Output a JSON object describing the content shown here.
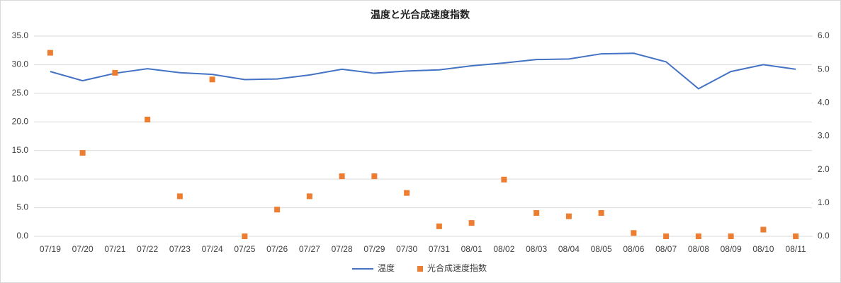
{
  "chart_data": {
    "type": "combo",
    "title": "温度と光合成速度指数",
    "categories": [
      "07/19",
      "07/20",
      "07/21",
      "07/22",
      "07/23",
      "07/24",
      "07/25",
      "07/26",
      "07/27",
      "07/28",
      "07/29",
      "07/30",
      "07/31",
      "08/01",
      "08/02",
      "08/03",
      "08/04",
      "08/05",
      "08/06",
      "08/07",
      "08/08",
      "08/09",
      "08/10",
      "08/11"
    ],
    "series": [
      {
        "name": "温度",
        "type": "line",
        "color": "#4472c4",
        "values": [
          28.8,
          27.2,
          28.5,
          29.3,
          28.6,
          28.3,
          27.4,
          27.5,
          28.2,
          29.2,
          28.5,
          28.9,
          29.1,
          29.8,
          30.3,
          30.9,
          31.0,
          31.9,
          32.0,
          30.5,
          25.8,
          28.8,
          30.0,
          29.2
        ]
      },
      {
        "name": "光合成速度指数",
        "type": "scatter",
        "color": "#ed7d31",
        "axis": "y2",
        "values": [
          5.5,
          2.5,
          4.9,
          3.5,
          1.2,
          4.7,
          0,
          0.8,
          1.2,
          1.8,
          1.8,
          1.3,
          0.3,
          0.4,
          1.7,
          0.7,
          0.6,
          0.7,
          0.1,
          0,
          0,
          0,
          0.2,
          0
        ]
      }
    ],
    "ylim": [
      0,
      35
    ],
    "yticks": [
      {
        "value": 0,
        "label": "0.0"
      },
      {
        "value": 5,
        "label": "5.0"
      },
      {
        "value": 10,
        "label": "10.0"
      },
      {
        "value": 15,
        "label": "15.0"
      },
      {
        "value": 20,
        "label": "20.0"
      },
      {
        "value": 25,
        "label": "25.0"
      },
      {
        "value": 30,
        "label": "30.0"
      },
      {
        "value": 35,
        "label": "35.0"
      }
    ],
    "y2lim": [
      0,
      6
    ],
    "y2ticks": [
      {
        "value": 0,
        "label": "0.0"
      },
      {
        "value": 1,
        "label": "1.0"
      },
      {
        "value": 2,
        "label": "2.0"
      },
      {
        "value": 3,
        "label": "3.0"
      },
      {
        "value": 4,
        "label": "4.0"
      },
      {
        "value": 5,
        "label": "5.0"
      },
      {
        "value": 6,
        "label": "6.0"
      }
    ],
    "grid": true,
    "legend": "bottom"
  }
}
